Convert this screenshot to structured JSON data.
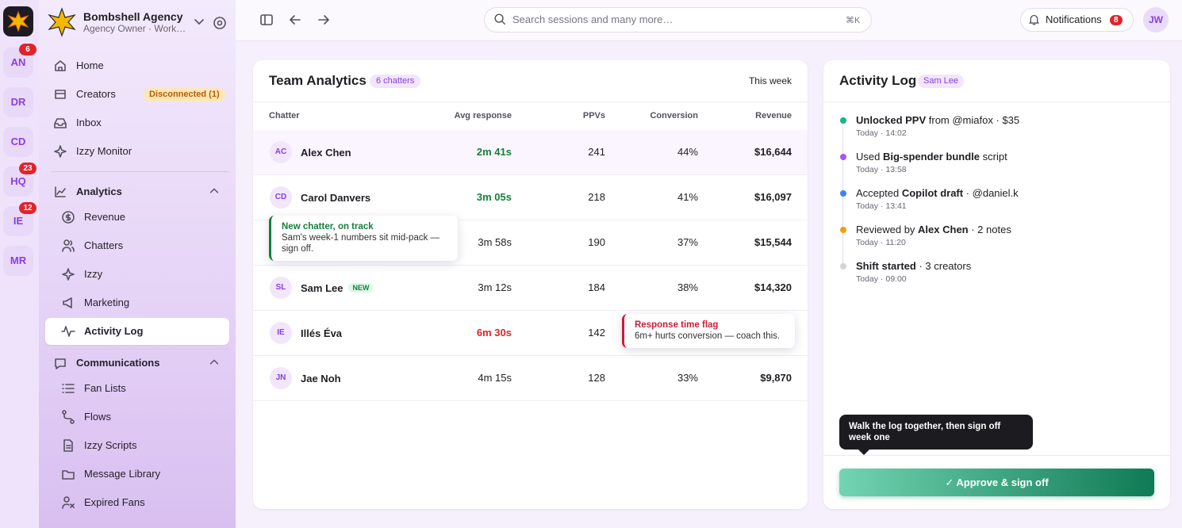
{
  "rail": {
    "accounts": [
      {
        "initials": "AN",
        "badge": "6"
      },
      {
        "initials": "DR"
      },
      {
        "initials": "CD"
      },
      {
        "initials": "HQ",
        "badge": "23"
      },
      {
        "initials": "IE",
        "badge": "12"
      },
      {
        "initials": "MR"
      }
    ]
  },
  "workspace": {
    "name": "Bombshell Agency",
    "role": "Agency Owner · Work…"
  },
  "nav": {
    "items": [
      {
        "label": "Home"
      },
      {
        "label": "Creators",
        "badge": "Disconnected (1)"
      },
      {
        "label": "Inbox"
      },
      {
        "label": "Izzy Monitor"
      }
    ],
    "sections": [
      {
        "label": "Analytics",
        "items": [
          {
            "label": "Revenue"
          },
          {
            "label": "Chatters"
          },
          {
            "label": "Izzy"
          },
          {
            "label": "Marketing"
          },
          {
            "label": "Activity Log",
            "active": true
          }
        ]
      },
      {
        "label": "Communications",
        "items": [
          {
            "label": "Fan Lists"
          },
          {
            "label": "Flows"
          },
          {
            "label": "Izzy Scripts"
          },
          {
            "label": "Message Library"
          },
          {
            "label": "Expired Fans"
          }
        ]
      }
    ]
  },
  "topbar": {
    "search_placeholder": "Search sessions and many more…",
    "shortcut": "⌘K",
    "notifications": "Notifications",
    "notification_count": "8",
    "avatar": "JW"
  },
  "team_analytics": {
    "title": "Team Analytics",
    "badge": "6 chatters",
    "period": "This week",
    "columns": [
      "Chatter",
      "Avg response",
      "PPVs",
      "Conversion",
      "Revenue"
    ],
    "rows": [
      {
        "initials": "AC",
        "name": "Alex Chen",
        "avg_response": "2m 41s",
        "avg_color": "#15803d",
        "ppvs": "241",
        "conversion": "44%",
        "revenue": "$16,644",
        "highlighted": true
      },
      {
        "initials": "CD",
        "name": "Carol Danvers",
        "avg_response": "3m 05s",
        "avg_color": "#15803d",
        "ppvs": "218",
        "conversion": "41%",
        "revenue": "$16,097"
      },
      {
        "avg_response": "3m 58s",
        "ppvs": "190",
        "conversion": "37%",
        "revenue": "$15,544"
      },
      {
        "initials": "SL",
        "name": "Sam Lee",
        "tag": "NEW",
        "avg_response": "3m 12s",
        "ppvs": "184",
        "conversion": "38%",
        "revenue": "$14,320"
      },
      {
        "initials": "IE",
        "name": "Illés Éva",
        "avg_response": "6m 30s",
        "avg_color": "#dc2626",
        "ppvs": "142"
      },
      {
        "initials": "JN",
        "name": "Jae Noh",
        "avg_response": "4m 15s",
        "ppvs": "128",
        "conversion": "33%",
        "revenue": "$9,870"
      }
    ],
    "callouts": [
      {
        "title": "New chatter, on track",
        "text": "Sam's week-1 numbers sit mid-pack — sign off.",
        "color": "#15803d"
      },
      {
        "title": "Response time flag",
        "text": "6m+ hurts conversion — coach this.",
        "color": "#c81e3a"
      }
    ]
  },
  "activity_log": {
    "title": "Activity Log",
    "badge": "Sam Lee",
    "entries": [
      {
        "color": "#10b981",
        "parts": [
          {
            "text": "Unlocked PPV",
            "bold": true
          },
          {
            "text": " from @miafox · $35"
          }
        ],
        "time": "Today · 14:02"
      },
      {
        "color": "#a855f7",
        "parts": [
          {
            "text": "Used "
          },
          {
            "text": "Big-spender bundle",
            "bold": true
          },
          {
            "text": " script"
          }
        ],
        "time": "Today · 13:58"
      },
      {
        "color": "#3b82f6",
        "parts": [
          {
            "text": "Accepted "
          },
          {
            "text": "Copilot draft",
            "bold": true
          },
          {
            "text": " · @daniel.k"
          }
        ],
        "time": "Today · 13:41"
      },
      {
        "color": "#f59e0b",
        "parts": [
          {
            "text": "Reviewed by "
          },
          {
            "text": "Alex Chen",
            "bold": true
          },
          {
            "text": " · 2 notes"
          }
        ],
        "time": "Today · 11:20"
      },
      {
        "color": "#d4d4d8",
        "parts": [
          {
            "text": "Shift started",
            "bold": true
          },
          {
            "text": " · 3 creators"
          }
        ],
        "time": "Today · 09:00"
      }
    ],
    "tooltip": "Walk the log together, then sign off week one",
    "action": "✓ Approve & sign off"
  }
}
